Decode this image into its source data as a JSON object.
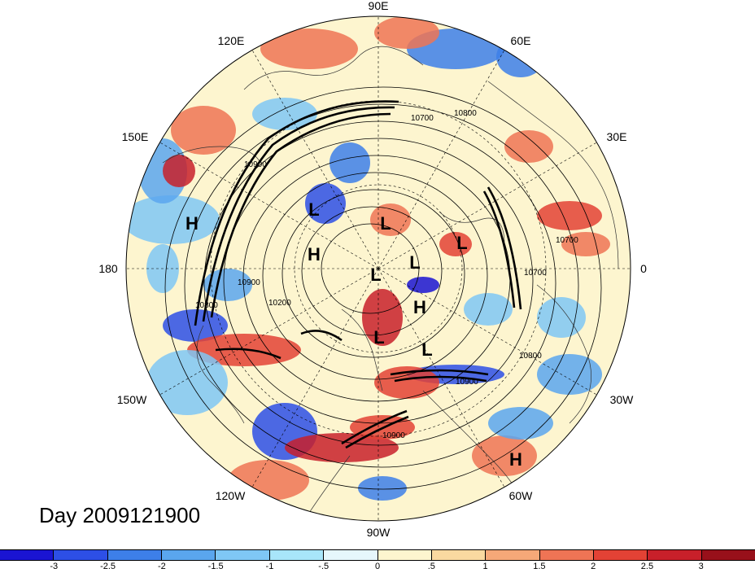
{
  "title_label": "Day 2009121900",
  "longitude_labels": [
    {
      "text": "90E",
      "key": "top"
    },
    {
      "text": "120E",
      "key": "tl2"
    },
    {
      "text": "60E",
      "key": "tr2"
    },
    {
      "text": "150E",
      "key": "tl1"
    },
    {
      "text": "30E",
      "key": "tr1"
    },
    {
      "text": "180",
      "key": "left"
    },
    {
      "text": "0",
      "key": "right"
    },
    {
      "text": "150W",
      "key": "bl1"
    },
    {
      "text": "30W",
      "key": "br1"
    },
    {
      "text": "120W",
      "key": "bl2"
    },
    {
      "text": "60W",
      "key": "br2"
    },
    {
      "text": "90W",
      "key": "bottom"
    }
  ],
  "pressure_centers": [
    "H",
    "L",
    "H",
    "L",
    "L",
    "L",
    "L",
    "H",
    "L",
    "L",
    "H"
  ],
  "contour_labels": [
    "10700",
    "10800",
    "10900",
    "10700",
    "10800",
    "10900",
    "10700",
    "10800",
    "10900",
    "10200",
    "10900"
  ],
  "colorbar": {
    "colors": [
      "#1a14d2",
      "#2d4fe6",
      "#3d7fe9",
      "#5aa6ee",
      "#7fc7f5",
      "#a8e6fa",
      "#e6f7fc",
      "#fdf5cf",
      "#fad9a0",
      "#f6a878",
      "#ef7455",
      "#e34235",
      "#c8202a",
      "#98101a"
    ],
    "labels": [
      "-3",
      "-2.5",
      "-2",
      "-1.5",
      "-1",
      "-.5",
      "0",
      ".5",
      "1",
      "1.5",
      "2",
      "2.5",
      "3"
    ]
  }
}
